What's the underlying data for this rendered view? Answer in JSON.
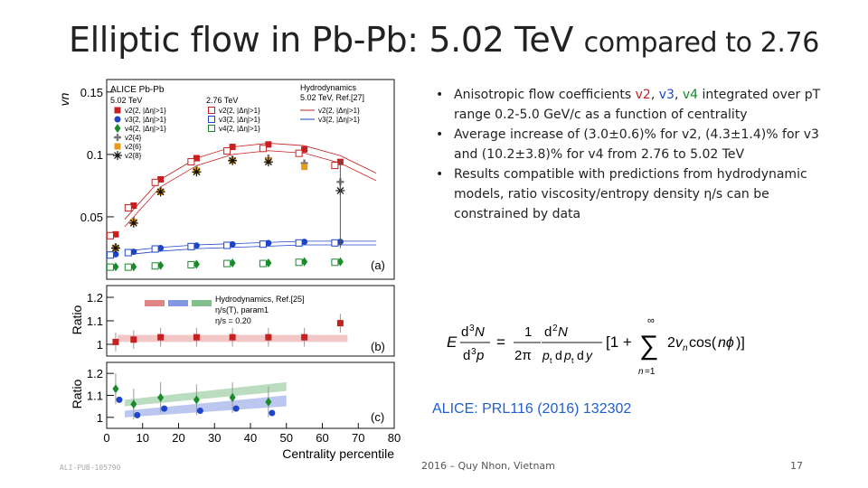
{
  "slide": {
    "title_main": "Elliptic flow in Pb-Pb: 5.02 TeV",
    "title_tail": "compared to 2.76",
    "footer": "2016 – Quy Nhon, Vietnam",
    "page_number": "17",
    "watermark": "ALI-PUB-105790"
  },
  "bullets": [
    {
      "parts": [
        "Anisotropic flow coefficients ",
        "v2",
        ", ",
        "v3",
        ", ",
        "v4",
        " integrated over pT range 0.2-5.0 GeV/c as a function of centrality"
      ]
    },
    {
      "parts": [
        "Average increase of (3.0±0.6)% for v2, (4.3±1.4)% for v3 and (10.2±3.8)% for v4 from 2.76 to 5.02 TeV"
      ]
    },
    {
      "parts": [
        "Results compatible with predictions from hydrodynamic models, ratio viscosity/entropy density η/s can be constrained by data"
      ]
    }
  ],
  "reference": "ALICE: PRL116 (2016) 132302",
  "colors": {
    "v2": "#c62020",
    "v3": "#1f44c8",
    "v4": "#1b8a2a",
    "v2_4": "#777777",
    "v2_6": "#e89a1a",
    "v2_8": "#111111"
  },
  "chart_data": [
    {
      "type": "scatter",
      "panel": "(a)",
      "xlabel": "Centrality percentile",
      "ylabel": "vn",
      "ylim": [
        0,
        0.16
      ],
      "xlim": [
        0,
        80
      ],
      "yticks": [
        "0.05",
        "0.1",
        "0.15"
      ],
      "legend": {
        "header_left": "ALICE Pb-Pb",
        "col1": "5.02 TeV",
        "col2": "2.76 TeV",
        "col3_header": "Hydrodynamics",
        "col3_sub": "5.02 TeV, Ref.[27]",
        "rows": [
          "v2{2, |Δη|>1}",
          "v3{2, |Δη|>1}",
          "v4{2, |Δη|>1}",
          "v2{4}",
          "v2{6}",
          "v2{8}"
        ]
      },
      "x": [
        2.5,
        7.5,
        15,
        25,
        35,
        45,
        55,
        65
      ],
      "series": [
        {
          "name": "v2{2, |Δη|>1}",
          "values": [
            0.036,
            0.059,
            0.08,
            0.097,
            0.106,
            0.108,
            0.104,
            0.094
          ]
        },
        {
          "name": "v3{2, |Δη|>1}",
          "values": [
            0.02,
            0.022,
            0.025,
            0.027,
            0.028,
            0.029,
            0.03,
            0.03
          ]
        },
        {
          "name": "v4{2, |Δη|>1}",
          "values": [
            0.01,
            0.01,
            0.011,
            0.012,
            0.013,
            0.013,
            0.014,
            0.014
          ]
        },
        {
          "name": "v2{4}",
          "values": [
            0.026,
            0.047,
            0.071,
            0.088,
            0.096,
            0.097,
            0.093,
            0.078
          ]
        },
        {
          "name": "v2{6}",
          "values": [
            0.025,
            0.046,
            0.07,
            0.087,
            0.095,
            0.095,
            0.09,
            null
          ]
        },
        {
          "name": "v2{8}",
          "values": [
            0.025,
            0.045,
            0.07,
            0.086,
            0.095,
            0.094,
            null,
            0.071
          ]
        }
      ]
    },
    {
      "type": "scatter",
      "panel": "(b)",
      "ylabel": "Ratio",
      "ylim": [
        0.95,
        1.25
      ],
      "yticks": [
        "1",
        "1.1",
        "1.2"
      ],
      "legend": [
        "Hydrodynamics, Ref.[25]",
        "η/s(T), param1",
        "η/s = 0.20"
      ],
      "x": [
        2.5,
        7.5,
        15,
        25,
        35,
        45,
        55,
        65
      ],
      "series": [
        {
          "name": "v2",
          "values": [
            1.01,
            1.02,
            1.03,
            1.03,
            1.03,
            1.03,
            1.03,
            1.09
          ]
        }
      ]
    },
    {
      "type": "scatter",
      "panel": "(c)",
      "ylabel": "Ratio",
      "ylim": [
        0.95,
        1.25
      ],
      "yticks": [
        "1",
        "1.1",
        "1.2"
      ],
      "xticks": [
        "0",
        "10",
        "20",
        "30",
        "40",
        "50",
        "60",
        "70",
        "80"
      ],
      "x": [
        2.5,
        7.5,
        15,
        25,
        35,
        45
      ],
      "series": [
        {
          "name": "v4",
          "values": [
            1.13,
            1.06,
            1.09,
            1.08,
            1.09,
            1.07
          ]
        }
      ]
    }
  ]
}
